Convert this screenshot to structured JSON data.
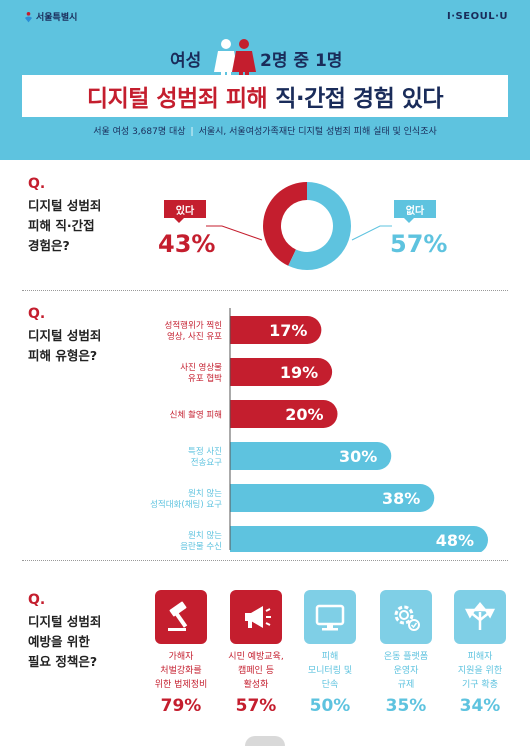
{
  "header": {
    "logo_text": "서울특별시",
    "brand": "I·SEOUL·U",
    "sub_left": "여성",
    "sub_right": "2명 중 1명",
    "title_red": "디지털 성범죄 피해",
    "title_navy": "직·간접 경험 있다",
    "source_left": "서울 여성 3,687명 대상",
    "source_sep": "|",
    "source_right": "서울시, 서울여성가족재단 디지털 성범죄 피해 실태 및 인식조사"
  },
  "q1": {
    "mark": "Q.",
    "lines": [
      "디지털 성범죄",
      "피해 직·간접",
      "경험은?"
    ]
  },
  "q2": {
    "mark": "Q.",
    "lines": [
      "디지털 성범죄",
      "피해 유형은?"
    ]
  },
  "q3": {
    "mark": "Q.",
    "lines": [
      "디지털 성범죄",
      "예방을 위한",
      "필요 정책은?"
    ]
  },
  "colors": {
    "red": "#c41e2e",
    "blue": "#5ec3df",
    "light_blue": "#7fcfe6",
    "navy": "#1a2c5a"
  },
  "chart_data": [
    {
      "type": "pie",
      "title": "",
      "slices": [
        {
          "label": "있다",
          "value": 43,
          "display": "43%"
        },
        {
          "label": "없다",
          "value": 57,
          "display": "57%"
        }
      ]
    },
    {
      "type": "bar",
      "orientation": "horizontal",
      "categories": [
        [
          "성적행위가 찍힌",
          "영상, 사진 유포"
        ],
        [
          "사진 영상물",
          "유포 협박"
        ],
        [
          "신체 촬영 피해"
        ],
        [
          "특정 사진",
          "전송요구"
        ],
        [
          "원치 않는",
          "성적대화(채팅) 요구"
        ],
        [
          "원치 않는",
          "음란물 수신"
        ]
      ],
      "values": [
        17,
        19,
        20,
        30,
        38,
        48
      ],
      "value_labels": [
        "17%",
        "19%",
        "20%",
        "30%",
        "38%",
        "48%"
      ],
      "bar_colors": [
        "#c41e2e",
        "#c41e2e",
        "#c41e2e",
        "#5ec3df",
        "#5ec3df",
        "#5ec3df"
      ]
    },
    {
      "type": "table",
      "items": [
        {
          "icon": "gavel-icon",
          "label": [
            "가해자",
            "처벌강화를",
            "위한 법제정비"
          ],
          "value": 79,
          "display": "79%",
          "color": "red"
        },
        {
          "icon": "megaphone-icon",
          "label": [
            "시민 예방교육,",
            "캠페인 등",
            "활성화"
          ],
          "value": 57,
          "display": "57%",
          "color": "red"
        },
        {
          "icon": "monitor-icon",
          "label": [
            "피해",
            "모니터링 및",
            "단속"
          ],
          "value": 50,
          "display": "50%",
          "color": "blue"
        },
        {
          "icon": "gear-icon",
          "label": [
            "온동 플랫폼",
            "운영자",
            "규제"
          ],
          "value": 35,
          "display": "35%",
          "color": "blue"
        },
        {
          "icon": "directions-icon",
          "label": [
            "피해자",
            "지원을 위한",
            "기구 확충"
          ],
          "value": 34,
          "display": "34%",
          "color": "blue"
        }
      ]
    }
  ]
}
